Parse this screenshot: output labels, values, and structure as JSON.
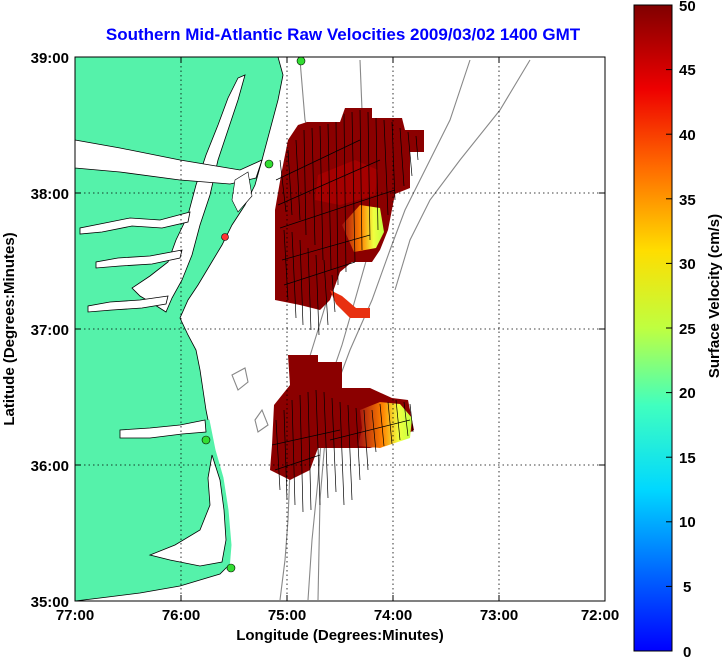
{
  "title": "Southern Mid-Atlantic Raw Velocities 2009/03/02 1400 GMT",
  "map": {
    "xlabel": "Longitude (Degrees:Minutes)",
    "ylabel": "Latitude (Degrees:Minutes)",
    "x_ticks": [
      "77:00",
      "76:00",
      "75:00",
      "74:00",
      "73:00",
      "72:00"
    ],
    "y_ticks": [
      "39:00",
      "38:00",
      "37:00",
      "36:00",
      "35:00"
    ],
    "lon_range": [
      -77,
      -72
    ],
    "lat_range": [
      35,
      39
    ],
    "land_color": "#55f2aa",
    "grid": true
  },
  "colorbar": {
    "label": "Surface Velocity (cm/s)",
    "ticks": [
      "50",
      "45",
      "40",
      "35",
      "30",
      "25",
      "20",
      "15",
      "10",
      "5",
      "0"
    ],
    "range": [
      0,
      50
    ],
    "colormap": "jet"
  }
}
